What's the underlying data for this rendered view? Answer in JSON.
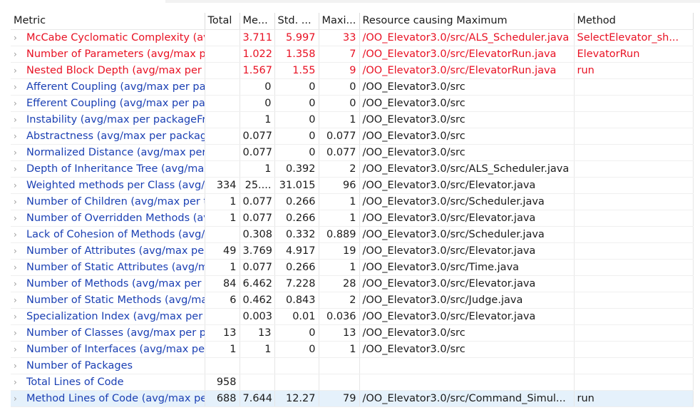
{
  "columns": [
    "Metric",
    "Total",
    "Me...",
    "Std. ...",
    "Maxi...",
    "Resource causing Maximum",
    "Method"
  ],
  "rows": [
    {
      "metric": "McCabe Cyclomatic Complexity (avg/max per method)",
      "total": "",
      "mean": "3.711",
      "std": "5.997",
      "max": "33",
      "resource": "/OO_Elevator3.0/src/ALS_Scheduler.java",
      "method": "SelectElevator_sh...",
      "style": "red"
    },
    {
      "metric": "Number of Parameters (avg/max per method)",
      "total": "",
      "mean": "1.022",
      "std": "1.358",
      "max": "7",
      "resource": "/OO_Elevator3.0/src/ElevatorRun.java",
      "method": "ElevatorRun",
      "style": "red"
    },
    {
      "metric": "Nested Block Depth (avg/max per method)",
      "total": "",
      "mean": "1.567",
      "std": "1.55",
      "max": "9",
      "resource": "/OO_Elevator3.0/src/ElevatorRun.java",
      "method": "run",
      "style": "red"
    },
    {
      "metric": "Afferent Coupling (avg/max per packageFragment)",
      "total": "",
      "mean": "0",
      "std": "0",
      "max": "0",
      "resource": "/OO_Elevator3.0/src",
      "method": "",
      "style": "blue"
    },
    {
      "metric": "Efferent Coupling (avg/max per packageFragment)",
      "total": "",
      "mean": "0",
      "std": "0",
      "max": "0",
      "resource": "/OO_Elevator3.0/src",
      "method": "",
      "style": "blue"
    },
    {
      "metric": "Instability (avg/max per packageFragment)",
      "total": "",
      "mean": "1",
      "std": "0",
      "max": "1",
      "resource": "/OO_Elevator3.0/src",
      "method": "",
      "style": "blue"
    },
    {
      "metric": "Abstractness (avg/max per packageFragment)",
      "total": "",
      "mean": "0.077",
      "std": "0",
      "max": "0.077",
      "resource": "/OO_Elevator3.0/src",
      "method": "",
      "style": "blue"
    },
    {
      "metric": "Normalized Distance (avg/max per packageFragment)",
      "total": "",
      "mean": "0.077",
      "std": "0",
      "max": "0.077",
      "resource": "/OO_Elevator3.0/src",
      "method": "",
      "style": "blue"
    },
    {
      "metric": "Depth of Inheritance Tree (avg/max per type)",
      "total": "",
      "mean": "1",
      "std": "0.392",
      "max": "2",
      "resource": "/OO_Elevator3.0/src/ALS_Scheduler.java",
      "method": "",
      "style": "blue"
    },
    {
      "metric": "Weighted methods per Class (avg/max per type)",
      "total": "334",
      "mean": "25....",
      "std": "31.015",
      "max": "96",
      "resource": "/OO_Elevator3.0/src/Elevator.java",
      "method": "",
      "style": "blue"
    },
    {
      "metric": "Number of Children (avg/max per type)",
      "total": "1",
      "mean": "0.077",
      "std": "0.266",
      "max": "1",
      "resource": "/OO_Elevator3.0/src/Scheduler.java",
      "method": "",
      "style": "blue"
    },
    {
      "metric": "Number of Overridden Methods (avg/max per type)",
      "total": "1",
      "mean": "0.077",
      "std": "0.266",
      "max": "1",
      "resource": "/OO_Elevator3.0/src/Elevator.java",
      "method": "",
      "style": "blue"
    },
    {
      "metric": "Lack of Cohesion of Methods (avg/max per type)",
      "total": "",
      "mean": "0.308",
      "std": "0.332",
      "max": "0.889",
      "resource": "/OO_Elevator3.0/src/Scheduler.java",
      "method": "",
      "style": "blue"
    },
    {
      "metric": "Number of Attributes (avg/max per type)",
      "total": "49",
      "mean": "3.769",
      "std": "4.917",
      "max": "19",
      "resource": "/OO_Elevator3.0/src/Elevator.java",
      "method": "",
      "style": "blue"
    },
    {
      "metric": "Number of Static Attributes (avg/max per type)",
      "total": "1",
      "mean": "0.077",
      "std": "0.266",
      "max": "1",
      "resource": "/OO_Elevator3.0/src/Time.java",
      "method": "",
      "style": "blue"
    },
    {
      "metric": "Number of Methods (avg/max per type)",
      "total": "84",
      "mean": "6.462",
      "std": "7.228",
      "max": "28",
      "resource": "/OO_Elevator3.0/src/Elevator.java",
      "method": "",
      "style": "blue"
    },
    {
      "metric": "Number of Static Methods (avg/max per type)",
      "total": "6",
      "mean": "0.462",
      "std": "0.843",
      "max": "2",
      "resource": "/OO_Elevator3.0/src/Judge.java",
      "method": "",
      "style": "blue"
    },
    {
      "metric": "Specialization Index (avg/max per type)",
      "total": "",
      "mean": "0.003",
      "std": "0.01",
      "max": "0.036",
      "resource": "/OO_Elevator3.0/src/Elevator.java",
      "method": "",
      "style": "blue"
    },
    {
      "metric": "Number of Classes (avg/max per packageFragment)",
      "total": "13",
      "mean": "13",
      "std": "0",
      "max": "13",
      "resource": "/OO_Elevator3.0/src",
      "method": "",
      "style": "blue"
    },
    {
      "metric": "Number of Interfaces (avg/max per packageFragment)",
      "total": "1",
      "mean": "1",
      "std": "0",
      "max": "1",
      "resource": "/OO_Elevator3.0/src",
      "method": "",
      "style": "blue"
    },
    {
      "metric": "Number of Packages",
      "total": "",
      "mean": "",
      "std": "",
      "max": "",
      "resource": "",
      "method": "",
      "style": "blue"
    },
    {
      "metric": "Total Lines of Code",
      "total": "958",
      "mean": "",
      "std": "",
      "max": "",
      "resource": "",
      "method": "",
      "style": "blue"
    },
    {
      "metric": "Method Lines of Code (avg/max per method)",
      "total": "688",
      "mean": "7.644",
      "std": "12.27",
      "max": "79",
      "resource": "/OO_Elevator3.0/src/Command_Simul...",
      "method": "run",
      "style": "blue",
      "selected": true
    }
  ],
  "icons": {
    "expand": "chevron-right-icon"
  },
  "colors": {
    "warning_text": "#e81123",
    "metric_text": "#1a3fb3",
    "selected_row": "#e5f1fb"
  }
}
